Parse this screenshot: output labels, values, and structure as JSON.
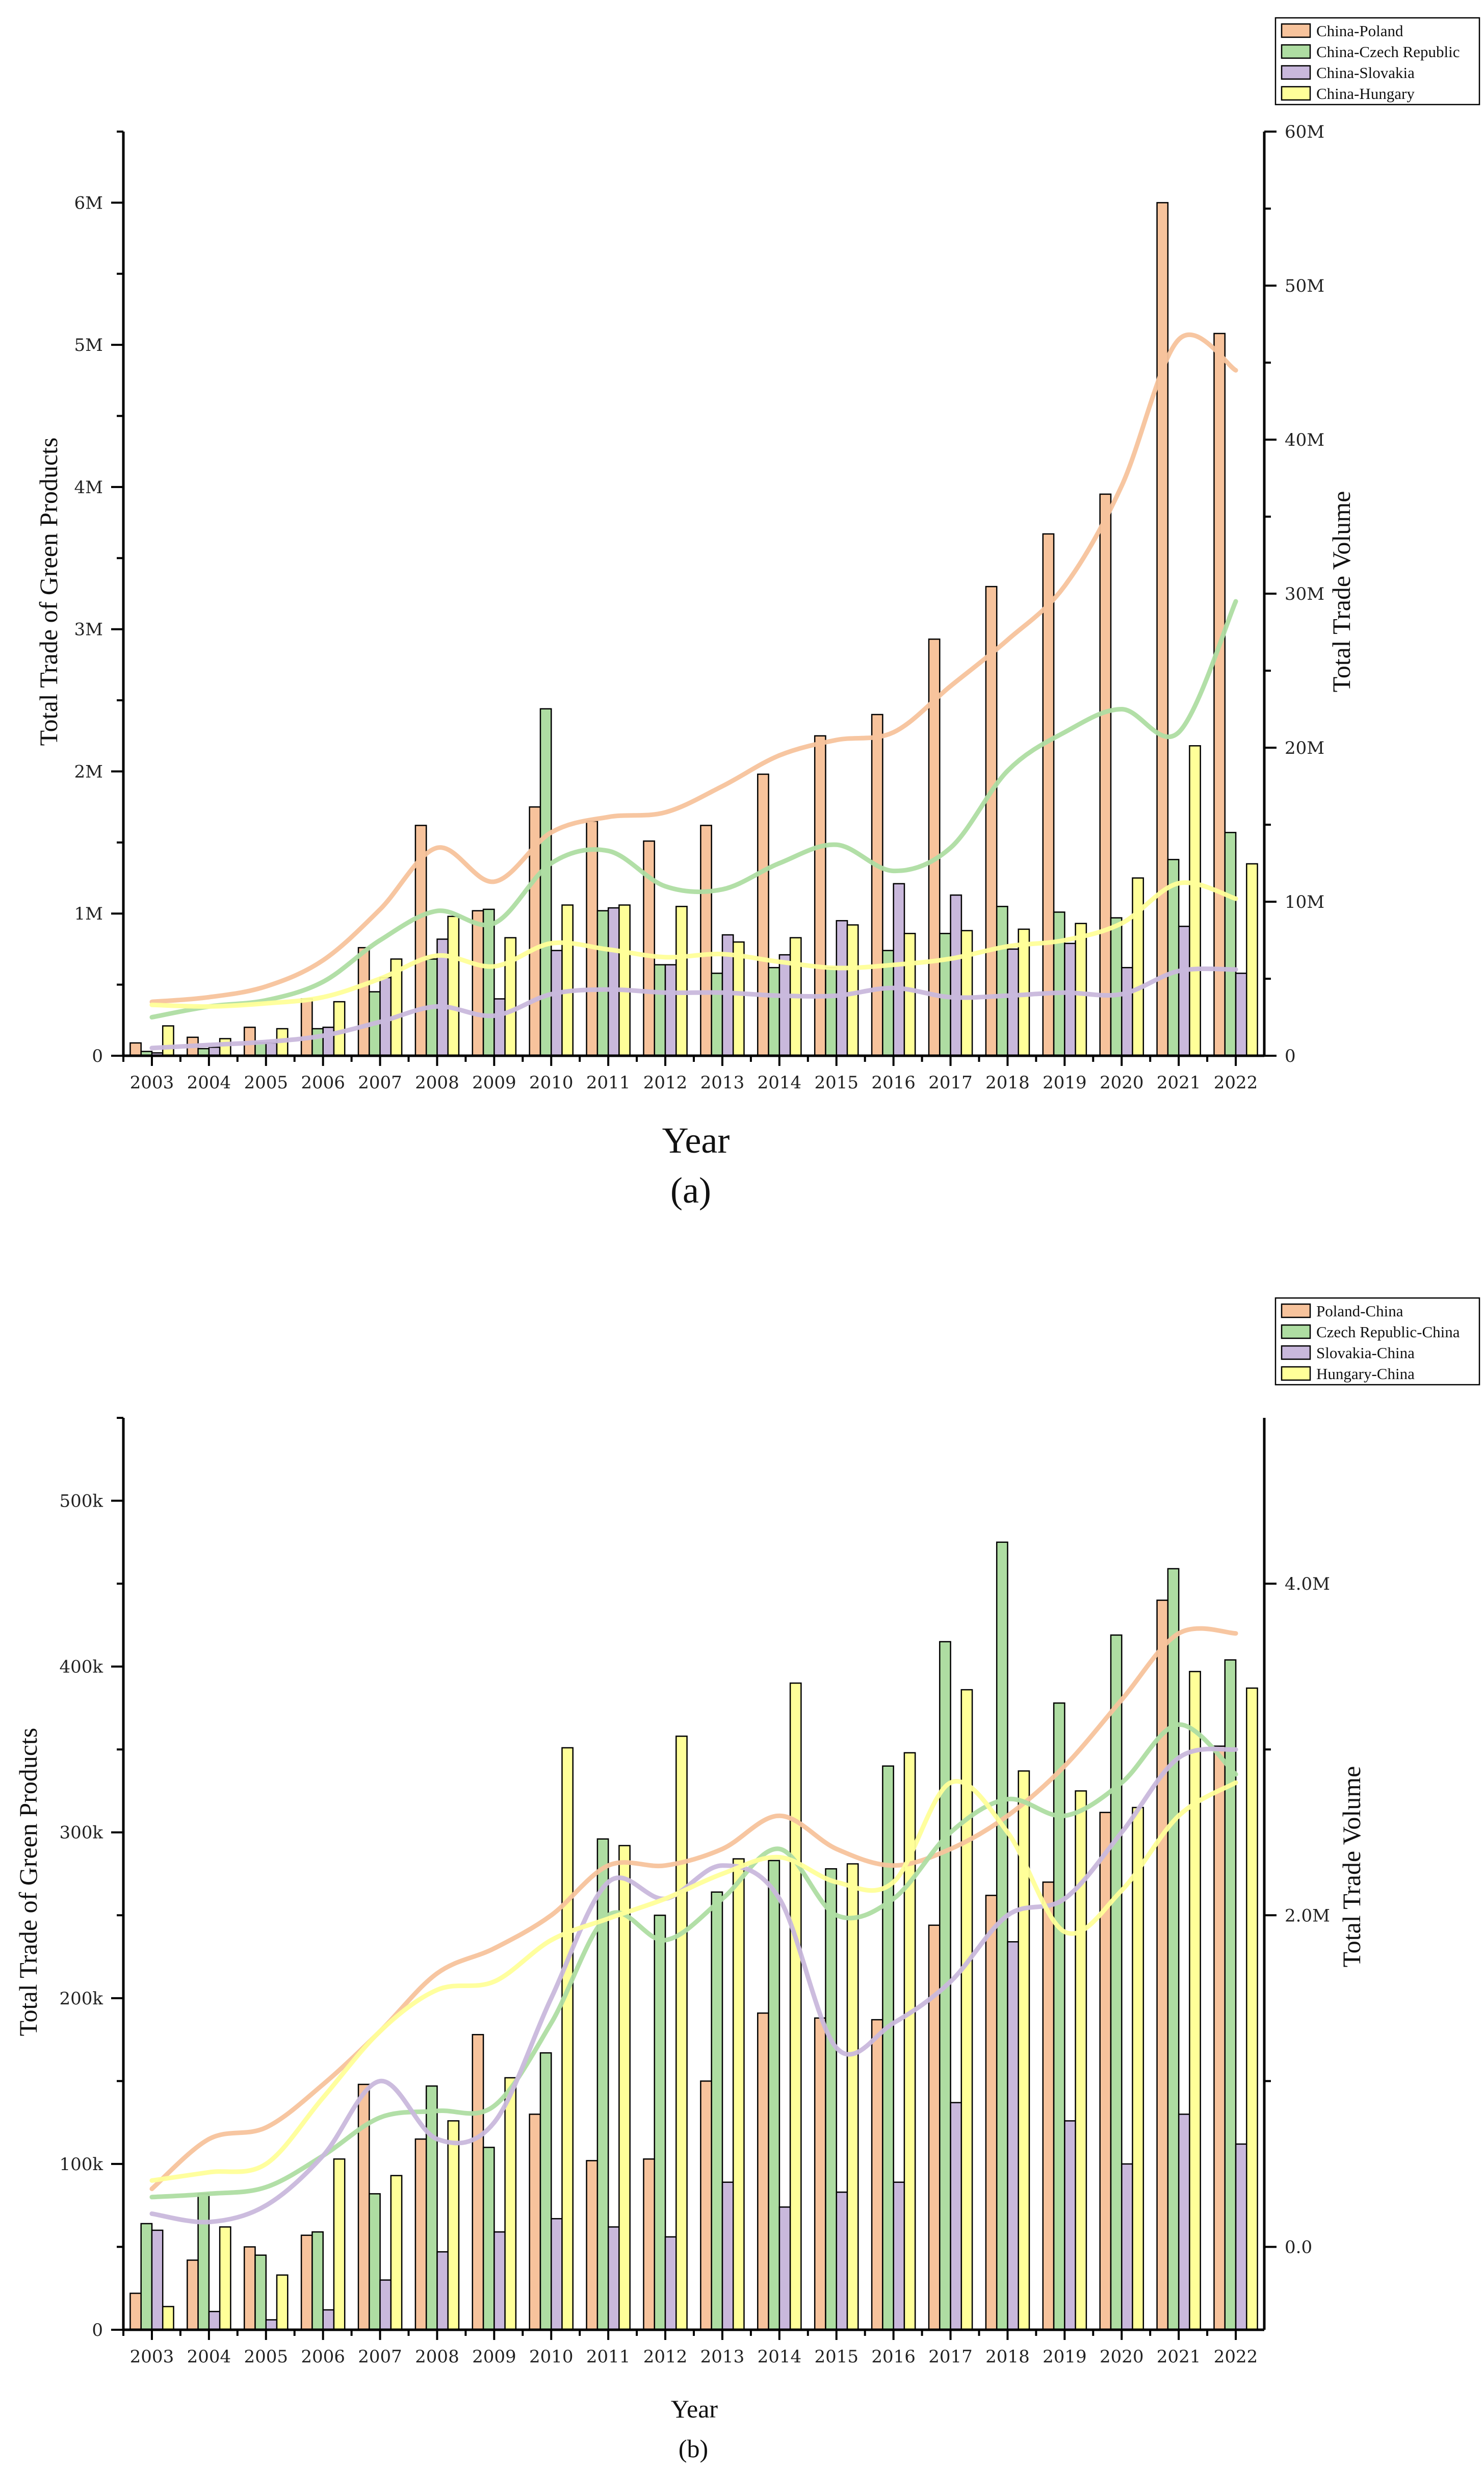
{
  "chart_data": [
    {
      "type": "bar",
      "panel_label": "(a)",
      "xlabel": "Year",
      "ylabel": "Total Trade of Green Products",
      "y2label": "Total Trade Volume",
      "categories": [
        "2003",
        "2004",
        "2005",
        "2006",
        "2007",
        "2008",
        "2009",
        "2010",
        "2011",
        "2012",
        "2013",
        "2014",
        "2015",
        "2016",
        "2017",
        "2018",
        "2019",
        "2020",
        "2021",
        "2022"
      ],
      "ylim": [
        0,
        6500000
      ],
      "y2lim": [
        0,
        60000000
      ],
      "yticks": [
        0,
        1000000,
        2000000,
        3000000,
        4000000,
        5000000,
        6000000
      ],
      "ytick_labels": [
        "0",
        "1M",
        "2M",
        "3M",
        "4M",
        "5M",
        "6M"
      ],
      "y2ticks": [
        0,
        10000000,
        20000000,
        30000000,
        40000000,
        50000000,
        60000000
      ],
      "y2tick_labels": [
        "0",
        "10M",
        "20M",
        "30M",
        "40M",
        "50M",
        "60M"
      ],
      "legend_position": "top-right",
      "series": [
        {
          "name": "China-Poland",
          "color": "#f7c39c",
          "values": [
            90000,
            130000,
            200000,
            400000,
            760000,
            1620000,
            1020000,
            1750000,
            1650000,
            1510000,
            1620000,
            1980000,
            2250000,
            2400000,
            2930000,
            3300000,
            3670000,
            3950000,
            6000000,
            5080000
          ],
          "trend": [
            3.5,
            3.8,
            4.5,
            6.2,
            9.5,
            13.5,
            11.3,
            14.5,
            15.5,
            15.8,
            17.5,
            19.5,
            20.5,
            21.0,
            24.0,
            27.0,
            30.5,
            37.0,
            46.5,
            44.5
          ]
        },
        {
          "name": "China-Czech Republic",
          "color": "#aedda2",
          "values": [
            30000,
            50000,
            90000,
            190000,
            450000,
            680000,
            1030000,
            2440000,
            1020000,
            640000,
            580000,
            620000,
            620000,
            740000,
            860000,
            1050000,
            1010000,
            970000,
            1380000,
            1570000
          ],
          "trend": [
            2.5,
            3.2,
            3.6,
            4.8,
            7.5,
            9.4,
            8.6,
            12.5,
            13.3,
            11.0,
            10.8,
            12.5,
            13.7,
            12.0,
            13.5,
            18.5,
            21.0,
            22.5,
            21.0,
            29.5
          ]
        },
        {
          "name": "China-Slovakia",
          "color": "#c9b8dc",
          "values": [
            20000,
            60000,
            90000,
            200000,
            550000,
            820000,
            400000,
            740000,
            1040000,
            640000,
            850000,
            710000,
            950000,
            1210000,
            1130000,
            750000,
            790000,
            620000,
            910000,
            580000
          ],
          "trend": [
            0.5,
            0.7,
            0.9,
            1.3,
            2.2,
            3.2,
            2.6,
            4.0,
            4.3,
            4.1,
            4.1,
            3.9,
            3.9,
            4.4,
            3.8,
            3.9,
            4.1,
            4.0,
            5.5,
            5.6
          ]
        },
        {
          "name": "China-Hungary",
          "color": "#ffff99",
          "values": [
            210000,
            120000,
            190000,
            380000,
            680000,
            980000,
            830000,
            1060000,
            1060000,
            1050000,
            800000,
            830000,
            920000,
            860000,
            880000,
            890000,
            930000,
            1250000,
            2180000,
            1350000
          ],
          "trend": [
            3.3,
            3.2,
            3.4,
            3.8,
            5.0,
            6.5,
            5.8,
            7.3,
            6.9,
            6.4,
            6.6,
            6.1,
            5.7,
            5.9,
            6.3,
            7.1,
            7.5,
            8.6,
            11.2,
            10.2
          ]
        }
      ]
    },
    {
      "type": "bar",
      "panel_label": "(b)",
      "xlabel": "Year",
      "ylabel": "Total Trade of Green Products",
      "y2label": "Total Trade Volume",
      "categories": [
        "2003",
        "2004",
        "2005",
        "2006",
        "2007",
        "2008",
        "2009",
        "2010",
        "2011",
        "2012",
        "2013",
        "2014",
        "2015",
        "2016",
        "2017",
        "2018",
        "2019",
        "2020",
        "2021",
        "2022"
      ],
      "ylim": [
        0,
        550000
      ],
      "y2lim": [
        -0.5,
        5.0
      ],
      "yticks": [
        0,
        100000,
        200000,
        300000,
        400000,
        500000
      ],
      "ytick_labels": [
        "0",
        "100k",
        "200k",
        "300k",
        "400k",
        "500k"
      ],
      "y2ticks": [
        0,
        2,
        4
      ],
      "y2tick_labels": [
        "0.0",
        "2.0M",
        "4.0M"
      ],
      "legend_position": "top-right",
      "series": [
        {
          "name": "Poland-China",
          "color": "#f7c39c",
          "values": [
            22000,
            42000,
            50000,
            57000,
            148000,
            115000,
            178000,
            130000,
            102000,
            103000,
            150000,
            191000,
            188000,
            187000,
            244000,
            262000,
            270000,
            312000,
            440000,
            352000
          ],
          "trend": [
            0.35,
            0.65,
            0.72,
            0.98,
            1.3,
            1.65,
            1.8,
            2.0,
            2.3,
            2.3,
            2.4,
            2.6,
            2.4,
            2.3,
            2.4,
            2.6,
            2.9,
            3.3,
            3.7,
            3.7
          ]
        },
        {
          "name": "Czech Republic-China",
          "color": "#aedda2",
          "values": [
            64000,
            82000,
            45000,
            59000,
            82000,
            147000,
            110000,
            167000,
            296000,
            250000,
            264000,
            283000,
            278000,
            340000,
            415000,
            475000,
            378000,
            419000,
            459000,
            404000
          ],
          "trend": [
            0.3,
            0.32,
            0.36,
            0.55,
            0.78,
            0.82,
            0.85,
            1.35,
            2.0,
            1.85,
            2.1,
            2.4,
            2.0,
            2.1,
            2.5,
            2.7,
            2.6,
            2.8,
            3.15,
            2.85
          ]
        },
        {
          "name": "Slovakia-China",
          "color": "#c9b8dc",
          "values": [
            60000,
            11000,
            6000,
            12000,
            30000,
            47000,
            59000,
            67000,
            62000,
            56000,
            89000,
            74000,
            83000,
            89000,
            137000,
            234000,
            126000,
            100000,
            130000,
            112000
          ],
          "trend": [
            0.2,
            0.15,
            0.25,
            0.55,
            1.0,
            0.65,
            0.75,
            1.5,
            2.2,
            2.1,
            2.3,
            2.1,
            1.2,
            1.35,
            1.6,
            2.0,
            2.1,
            2.5,
            2.95,
            3.0
          ]
        },
        {
          "name": "Hungary-China",
          "color": "#ffff99",
          "values": [
            14000,
            62000,
            33000,
            103000,
            93000,
            126000,
            152000,
            351000,
            292000,
            358000,
            284000,
            390000,
            281000,
            348000,
            386000,
            337000,
            325000,
            315000,
            397000,
            387000
          ],
          "trend": [
            0.4,
            0.45,
            0.5,
            0.9,
            1.3,
            1.55,
            1.6,
            1.85,
            1.98,
            2.1,
            2.25,
            2.35,
            2.2,
            2.2,
            2.8,
            2.5,
            1.9,
            2.15,
            2.6,
            2.8
          ]
        }
      ]
    }
  ]
}
